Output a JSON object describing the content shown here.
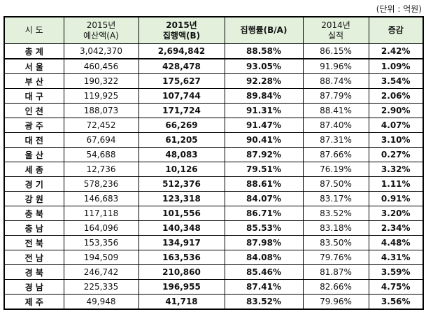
{
  "unit": "(단위 : 억원)",
  "headers": [
    [
      "시 도",
      ""
    ],
    [
      "2015년",
      "예산액(A)"
    ],
    [
      "2015년",
      "집행액(B)"
    ],
    [
      "집행률(B/A)",
      ""
    ],
    [
      "2014년",
      "실적"
    ],
    [
      "증감",
      ""
    ]
  ],
  "rows": [
    [
      "총 계",
      "3,042,370",
      "2,694,842",
      "88.58%",
      "86.15%",
      "2.42%"
    ],
    [
      "서 울",
      "460,456",
      "428,478",
      "93.05%",
      "91.96%",
      "1.09%"
    ],
    [
      "부 산",
      "190,322",
      "175,627",
      "92.28%",
      "88.74%",
      "3.54%"
    ],
    [
      "대 구",
      "119,925",
      "107,744",
      "89.84%",
      "87.79%",
      "2.06%"
    ],
    [
      "인 천",
      "188,073",
      "171,724",
      "91.31%",
      "88.41%",
      "2.90%"
    ],
    [
      "광 주",
      "72,452",
      "66,269",
      "91.47%",
      "87.40%",
      "4.07%"
    ],
    [
      "대 전",
      "67,694",
      "61,205",
      "90.41%",
      "87.31%",
      "3.10%"
    ],
    [
      "울 산",
      "54,688",
      "48,083",
      "87.92%",
      "87.66%",
      "0.27%"
    ],
    [
      "세 종",
      "12,736",
      "10,126",
      "79.51%",
      "76.19%",
      "3.32%"
    ],
    [
      "경 기",
      "578,236",
      "512,376",
      "88.61%",
      "87.50%",
      "1.11%"
    ],
    [
      "강 원",
      "146,683",
      "123,318",
      "84.07%",
      "83.17%",
      "0.91%"
    ],
    [
      "충 북",
      "117,118",
      "101,556",
      "86.71%",
      "83.52%",
      "3.20%"
    ],
    [
      "충 남",
      "164,096",
      "140,348",
      "85.53%",
      "83.18%",
      "2.34%"
    ],
    [
      "전 북",
      "153,356",
      "134,917",
      "87.98%",
      "83.50%",
      "4.48%"
    ],
    [
      "전 남",
      "194,509",
      "163,536",
      "84.08%",
      "79.76%",
      "4.31%"
    ],
    [
      "경 북",
      "246,742",
      "210,860",
      "85.46%",
      "81.87%",
      "3.59%"
    ],
    [
      "경 남",
      "225,335",
      "196,955",
      "87.41%",
      "82.66%",
      "4.75%"
    ],
    [
      "제 주",
      "49,948",
      "41,718",
      "83.52%",
      "79.96%",
      "3.56%"
    ]
  ]
}
